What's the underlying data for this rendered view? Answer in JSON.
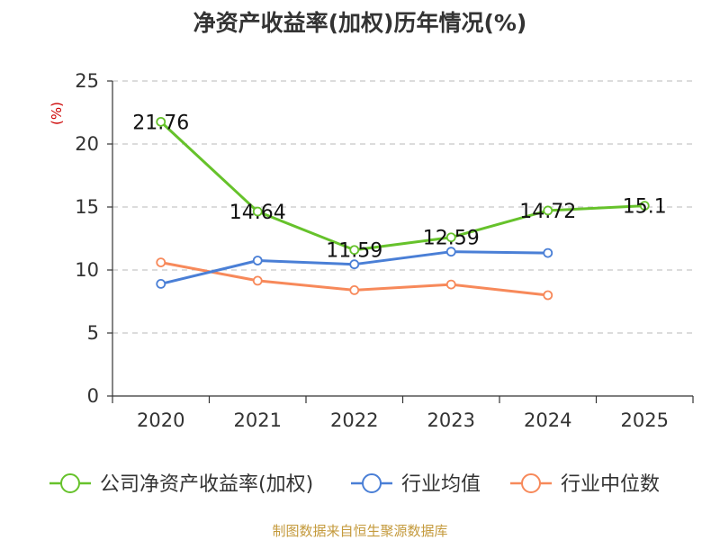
{
  "chart_data": {
    "type": "line",
    "title": "净资产收益率(加权)历年情况(%)",
    "ylabel": "(%)",
    "categories": [
      "2020",
      "2021",
      "2022",
      "2023",
      "2024",
      "2025"
    ],
    "ylim": [
      0,
      25
    ],
    "yticks": [
      0,
      5,
      10,
      15,
      20,
      25
    ],
    "grid": true,
    "legend_position": "bottom",
    "series": [
      {
        "name": "公司净资产收益率(加权)",
        "color": "#66c22b",
        "values": [
          21.76,
          14.64,
          11.59,
          12.59,
          14.72,
          15.1
        ],
        "labels": [
          "21.76",
          "14.64",
          "11.59",
          "12.59",
          "14.72",
          "15.1"
        ]
      },
      {
        "name": "行业均值",
        "color": "#4a7fd6",
        "values": [
          8.9,
          10.75,
          10.45,
          11.45,
          11.35,
          null
        ]
      },
      {
        "name": "行业中位数",
        "color": "#f7895a",
        "values": [
          10.6,
          9.15,
          8.4,
          8.85,
          8.0,
          null
        ]
      }
    ]
  },
  "source": "制图数据来自恒生聚源数据库"
}
